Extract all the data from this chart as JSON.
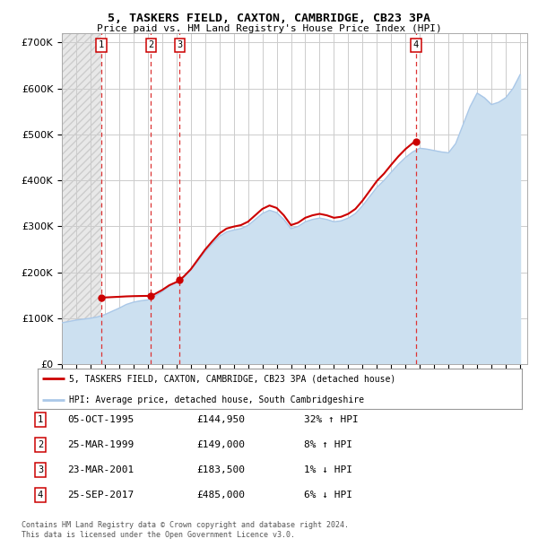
{
  "title": "5, TASKERS FIELD, CAXTON, CAMBRIDGE, CB23 3PA",
  "subtitle": "Price paid vs. HM Land Registry's House Price Index (HPI)",
  "legend_line1": "5, TASKERS FIELD, CAXTON, CAMBRIDGE, CB23 3PA (detached house)",
  "legend_line2": "HPI: Average price, detached house, South Cambridgeshire",
  "footer1": "Contains HM Land Registry data © Crown copyright and database right 2024.",
  "footer2": "This data is licensed under the Open Government Licence v3.0.",
  "sales": [
    {
      "num": 1,
      "date": "05-OCT-1995",
      "price": 144950,
      "pct": "32% ↑ HPI",
      "x_year": 1995.76
    },
    {
      "num": 2,
      "date": "25-MAR-1999",
      "price": 149000,
      "pct": "8% ↑ HPI",
      "x_year": 1999.23
    },
    {
      "num": 3,
      "date": "23-MAR-2001",
      "price": 183500,
      "pct": "1% ↓ HPI",
      "x_year": 2001.23
    },
    {
      "num": 4,
      "date": "25-SEP-2017",
      "price": 485000,
      "pct": "6% ↓ HPI",
      "x_year": 2017.73
    }
  ],
  "ylim": [
    0,
    720000
  ],
  "yticks": [
    0,
    100000,
    200000,
    300000,
    400000,
    500000,
    600000,
    700000
  ],
  "xlim_start": 1993.0,
  "xlim_end": 2025.5,
  "hpi_color": "#aac8e8",
  "hpi_fill_color": "#cce0f0",
  "price_color": "#cc0000",
  "grid_color": "#cccccc",
  "plot_bg_color": "#ffffff",
  "sale_marker_color": "#cc0000",
  "dashed_line_color": "#dd3333",
  "hatch_bg": "#e8e8e8",
  "hatch_edge": "#cccccc"
}
